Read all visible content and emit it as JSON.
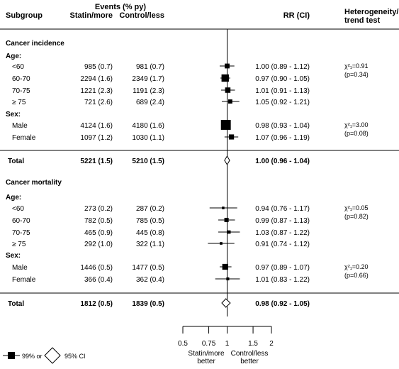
{
  "headers": {
    "subgroup": "Subgroup",
    "events": "Events (% py)",
    "statin": "Statin/more",
    "control": "Control/less",
    "rr": "RR (CI)",
    "het_line1": "Heterogeneity/",
    "het_line2": "trend test"
  },
  "rows": [
    {
      "kind": "section",
      "label": "Cancer incidence"
    },
    {
      "kind": "group",
      "label": "Age:"
    },
    {
      "kind": "data",
      "label": "<60",
      "statin": "985 (0.7)",
      "control": "981 (0.7)",
      "rr_text": "1.00 (0.89 - 1.12)",
      "het": "χ²₁=0.91",
      "het_p": "(p=0.34)"
    },
    {
      "kind": "data",
      "label": "60-70",
      "statin": "2294 (1.6)",
      "control": "2349 (1.7)",
      "rr_text": "0.97 (0.90 - 1.05)"
    },
    {
      "kind": "data",
      "label": "70-75",
      "statin": "1221 (2.3)",
      "control": "1191 (2.3)",
      "rr_text": "1.01 (0.91 - 1.13)"
    },
    {
      "kind": "data",
      "label": "≥ 75",
      "statin": "721 (2.6)",
      "control": "689 (2.4)",
      "rr_text": "1.05 (0.92 - 1.21)"
    },
    {
      "kind": "group",
      "label": "Sex:"
    },
    {
      "kind": "data",
      "label": "Male",
      "statin": "4124 (1.6)",
      "control": "4180 (1.6)",
      "rr_text": "0.98 (0.93 - 1.04)",
      "het": "χ²₁=3.00",
      "het_p": "(p=0.08)"
    },
    {
      "kind": "data",
      "label": "Female",
      "statin": "1097 (1.2)",
      "control": "1030 (1.1)",
      "rr_text": "1.07 (0.96 - 1.19)"
    },
    {
      "kind": "total",
      "label": "Total",
      "statin": "5221 (1.5)",
      "control": "5210 (1.5)",
      "rr_text": "1.00 (0.96 - 1.04)"
    },
    {
      "kind": "section",
      "label": "Cancer mortality"
    },
    {
      "kind": "group",
      "label": "Age:"
    },
    {
      "kind": "data",
      "label": "<60",
      "statin": "273 (0.2)",
      "control": "287 (0.2)",
      "rr_text": "0.94 (0.76 - 1.17)",
      "het": "χ²₁=0.05",
      "het_p": "(p=0.82)"
    },
    {
      "kind": "data",
      "label": "60-70",
      "statin": "782 (0.5)",
      "control": "785 (0.5)",
      "rr_text": "0.99 (0.87 - 1.13)"
    },
    {
      "kind": "data",
      "label": "70-75",
      "statin": "465 (0.9)",
      "control": "445 (0.8)",
      "rr_text": "1.03 (0.87 - 1.22)"
    },
    {
      "kind": "data",
      "label": "≥ 75",
      "statin": "292 (1.0)",
      "control": "322 (1.1)",
      "rr_text": "0.91 (0.74 - 1.12)"
    },
    {
      "kind": "group",
      "label": "Sex:"
    },
    {
      "kind": "data",
      "label": "Male",
      "statin": "1446 (0.5)",
      "control": "1477 (0.5)",
      "rr_text": "0.97 (0.89 - 1.07)",
      "het": "χ²₁=0.20",
      "het_p": "(p=0.66)"
    },
    {
      "kind": "data",
      "label": "Female",
      "statin": "366 (0.4)",
      "control": "362 (0.4)",
      "rr_text": "1.01 (0.83 - 1.22)"
    },
    {
      "kind": "total",
      "label": "Total",
      "statin": "1812 (0.5)",
      "control": "1839 (0.5)",
      "rr_text": "0.98 (0.92 - 1.05)"
    }
  ],
  "axis": {
    "ticks": [
      "0.5",
      "0.75",
      "1",
      "1.5",
      "2"
    ],
    "left_label": [
      "Statin/more",
      "better"
    ],
    "right_label": [
      "Control/less",
      "better"
    ]
  },
  "legend": {
    "square_label": "99% or",
    "diamond_label": "95% CI"
  },
  "chart_data": {
    "type": "forest",
    "x_scale": "log",
    "xlim": [
      0.5,
      2
    ],
    "reference_line": 1,
    "points": [
      {
        "group": "Cancer incidence",
        "label": "<60",
        "rr": 1.0,
        "lo": 0.89,
        "hi": 1.12,
        "weight": 985
      },
      {
        "group": "Cancer incidence",
        "label": "60-70",
        "rr": 0.97,
        "lo": 0.9,
        "hi": 1.05,
        "weight": 2294
      },
      {
        "group": "Cancer incidence",
        "label": "70-75",
        "rr": 1.01,
        "lo": 0.91,
        "hi": 1.13,
        "weight": 1221
      },
      {
        "group": "Cancer incidence",
        "label": "≥ 75",
        "rr": 1.05,
        "lo": 0.92,
        "hi": 1.21,
        "weight": 721
      },
      {
        "group": "Cancer incidence",
        "label": "Male",
        "rr": 0.98,
        "lo": 0.93,
        "hi": 1.04,
        "weight": 4124
      },
      {
        "group": "Cancer incidence",
        "label": "Female",
        "rr": 1.07,
        "lo": 0.96,
        "hi": 1.19,
        "weight": 1097
      },
      {
        "group": "Cancer incidence",
        "label": "Total",
        "rr": 1.0,
        "lo": 0.96,
        "hi": 1.04,
        "total": true
      },
      {
        "group": "Cancer mortality",
        "label": "<60",
        "rr": 0.94,
        "lo": 0.76,
        "hi": 1.17,
        "weight": 273
      },
      {
        "group": "Cancer mortality",
        "label": "60-70",
        "rr": 0.99,
        "lo": 0.87,
        "hi": 1.13,
        "weight": 782
      },
      {
        "group": "Cancer mortality",
        "label": "70-75",
        "rr": 1.03,
        "lo": 0.87,
        "hi": 1.22,
        "weight": 465
      },
      {
        "group": "Cancer mortality",
        "label": "≥ 75",
        "rr": 0.91,
        "lo": 0.74,
        "hi": 1.12,
        "weight": 292
      },
      {
        "group": "Cancer mortality",
        "label": "Male",
        "rr": 0.97,
        "lo": 0.89,
        "hi": 1.07,
        "weight": 1446
      },
      {
        "group": "Cancer mortality",
        "label": "Female",
        "rr": 1.01,
        "lo": 0.83,
        "hi": 1.22,
        "weight": 366
      },
      {
        "group": "Cancer mortality",
        "label": "Total",
        "rr": 0.98,
        "lo": 0.92,
        "hi": 1.05,
        "total": true
      }
    ]
  }
}
